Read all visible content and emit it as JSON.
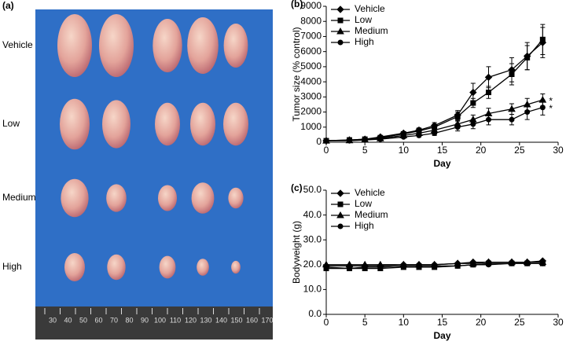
{
  "panel_a": {
    "label": "(a)",
    "rows": [
      "Vehicle",
      "Low",
      "Medium",
      "High"
    ],
    "ruler": [
      30,
      40,
      50,
      60,
      70,
      80,
      90,
      100,
      110,
      120,
      130,
      140,
      150,
      160,
      170
    ]
  },
  "chart_data": [
    {
      "type": "line",
      "label": "(b)",
      "y_label": "Tumor size (% control)",
      "x_label": "Day",
      "x": [
        0,
        3,
        5,
        7,
        10,
        12,
        14,
        17,
        19,
        21,
        24,
        26,
        28
      ],
      "xlim": [
        0,
        30
      ],
      "xticks": [
        0,
        5,
        10,
        15,
        20,
        25,
        30
      ],
      "ylim": [
        0,
        9000
      ],
      "yticks": [
        0,
        1000,
        2000,
        3000,
        4000,
        5000,
        6000,
        7000,
        8000,
        9000
      ],
      "series": [
        {
          "name": "Vehicle",
          "color": "#000000",
          "marker": "diamond",
          "values": [
            100,
            150,
            200,
            350,
            600,
            800,
            1100,
            1800,
            3300,
            4300,
            4800,
            5700,
            6600
          ],
          "errors": [
            20,
            30,
            40,
            60,
            100,
            150,
            200,
            300,
            600,
            700,
            800,
            900,
            1000
          ]
        },
        {
          "name": "Low",
          "color": "#000000",
          "marker": "square",
          "values": [
            100,
            150,
            200,
            300,
            550,
            750,
            1000,
            1700,
            2600,
            3300,
            4500,
            5600,
            6800
          ],
          "errors": [
            20,
            30,
            40,
            60,
            100,
            150,
            200,
            300,
            300,
            400,
            700,
            800,
            1000
          ]
        },
        {
          "name": "Medium",
          "color": "#000000",
          "marker": "triangle",
          "values": [
            100,
            120,
            180,
            250,
            450,
            600,
            800,
            1200,
            1500,
            1900,
            2200,
            2500,
            2800
          ],
          "errors": [
            20,
            30,
            40,
            50,
            80,
            100,
            150,
            250,
            300,
            350,
            350,
            400,
            400
          ]
        },
        {
          "name": "High",
          "color": "#000000",
          "marker": "circle",
          "values": [
            100,
            100,
            150,
            200,
            350,
            450,
            600,
            1000,
            1200,
            1500,
            1500,
            2000,
            2300
          ],
          "errors": [
            20,
            30,
            40,
            50,
            80,
            100,
            150,
            250,
            300,
            350,
            350,
            500,
            500
          ]
        }
      ],
      "annotations": [
        "*",
        "*"
      ]
    },
    {
      "type": "line",
      "label": "(c)",
      "y_label": "Bodyweight (g)",
      "x_label": "Day",
      "x": [
        0,
        3,
        5,
        7,
        10,
        12,
        14,
        17,
        19,
        21,
        24,
        26,
        28
      ],
      "xlim": [
        0,
        30
      ],
      "xticks": [
        0,
        5,
        10,
        15,
        20,
        25,
        30
      ],
      "ylim": [
        0,
        50
      ],
      "yticks": [
        {
          "value": 0,
          "label": "0.0"
        },
        {
          "value": 10,
          "label": "10.0"
        },
        {
          "value": 20,
          "label": "20.0"
        },
        {
          "value": 30,
          "label": "30.0"
        },
        {
          "value": 40,
          "label": "40.0"
        },
        {
          "value": 50,
          "label": "50.0"
        }
      ],
      "series": [
        {
          "name": "Vehicle",
          "color": "#000000",
          "marker": "diamond",
          "values": [
            19.5,
            19.5,
            19.5,
            19.5,
            20,
            20,
            20,
            20.5,
            21,
            21,
            21,
            21,
            21.5
          ]
        },
        {
          "name": "Low",
          "color": "#000000",
          "marker": "square",
          "values": [
            18.5,
            18.5,
            18.5,
            18.5,
            19,
            19,
            19,
            19.5,
            20,
            20.5,
            20.5,
            20.5,
            20.5
          ]
        },
        {
          "name": "Medium",
          "color": "#000000",
          "marker": "triangle",
          "values": [
            20,
            20,
            20,
            20,
            20,
            20,
            20,
            20.5,
            20.5,
            21,
            21,
            21,
            21
          ]
        },
        {
          "name": "High",
          "color": "#000000",
          "marker": "circle",
          "values": [
            19,
            18.5,
            19,
            19,
            19.5,
            19.5,
            19.5,
            19.5,
            20,
            20,
            20.5,
            20.5,
            20.5
          ]
        }
      ]
    }
  ]
}
